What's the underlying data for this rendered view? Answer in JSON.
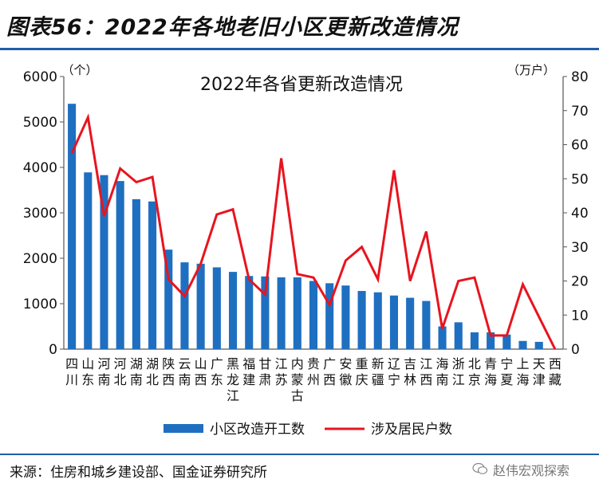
{
  "header": {
    "figure_title": "图表56：2022年各地老旧小区更新改造情况"
  },
  "footer": {
    "source": "来源：住房和城乡建设部、国金证券研究所",
    "watermark": "赵伟宏观探索"
  },
  "colors": {
    "bar": "#1f6fc1",
    "line": "#e8141e",
    "rule": "#1f5fa8",
    "axis": "#555555"
  },
  "chart_data": {
    "type": "bar",
    "title": "2022年各省更新改造情况",
    "left_unit": "（个）",
    "right_unit": "（万户）",
    "ylim": [
      0,
      6000
    ],
    "y_ticks": [
      0,
      1000,
      2000,
      3000,
      4000,
      5000,
      6000
    ],
    "y2lim": [
      0,
      80
    ],
    "y2_ticks": [
      0,
      10,
      20,
      30,
      40,
      50,
      60,
      70,
      80
    ],
    "categories": [
      "四川",
      "山东",
      "河南",
      "河北",
      "湖南",
      "湖北",
      "陕西",
      "云南",
      "山西",
      "广东",
      "黑龙江",
      "福建",
      "甘肃",
      "江苏",
      "内蒙古",
      "贵州",
      "广西",
      "安徽",
      "重庆",
      "新疆",
      "辽宁",
      "吉林",
      "江西",
      "海南",
      "浙江",
      "北京",
      "青海",
      "宁夏",
      "上海",
      "天津",
      "西藏"
    ],
    "series": [
      {
        "name": "小区改造开工数",
        "kind": "bar",
        "axis": "left",
        "values": [
          5400,
          3890,
          3830,
          3700,
          3300,
          3250,
          2190,
          1910,
          1880,
          1800,
          1700,
          1610,
          1600,
          1580,
          1580,
          1500,
          1450,
          1400,
          1280,
          1250,
          1180,
          1130,
          1060,
          500,
          590,
          370,
          370,
          320,
          180,
          160,
          0
        ]
      },
      {
        "name": "涉及居民户数",
        "kind": "line",
        "axis": "right",
        "values": [
          57.5,
          68,
          39,
          53,
          49,
          50.5,
          20.5,
          15.5,
          25,
          39.5,
          41,
          20.5,
          16,
          56,
          22,
          21,
          13,
          26,
          30,
          20.5,
          52.5,
          20,
          34.5,
          6,
          20,
          21,
          4,
          4,
          19,
          9.5,
          0
        ]
      }
    ],
    "legend": [
      "小区改造开工数",
      "涉及居民户数"
    ],
    "legend_position": "bottom"
  }
}
